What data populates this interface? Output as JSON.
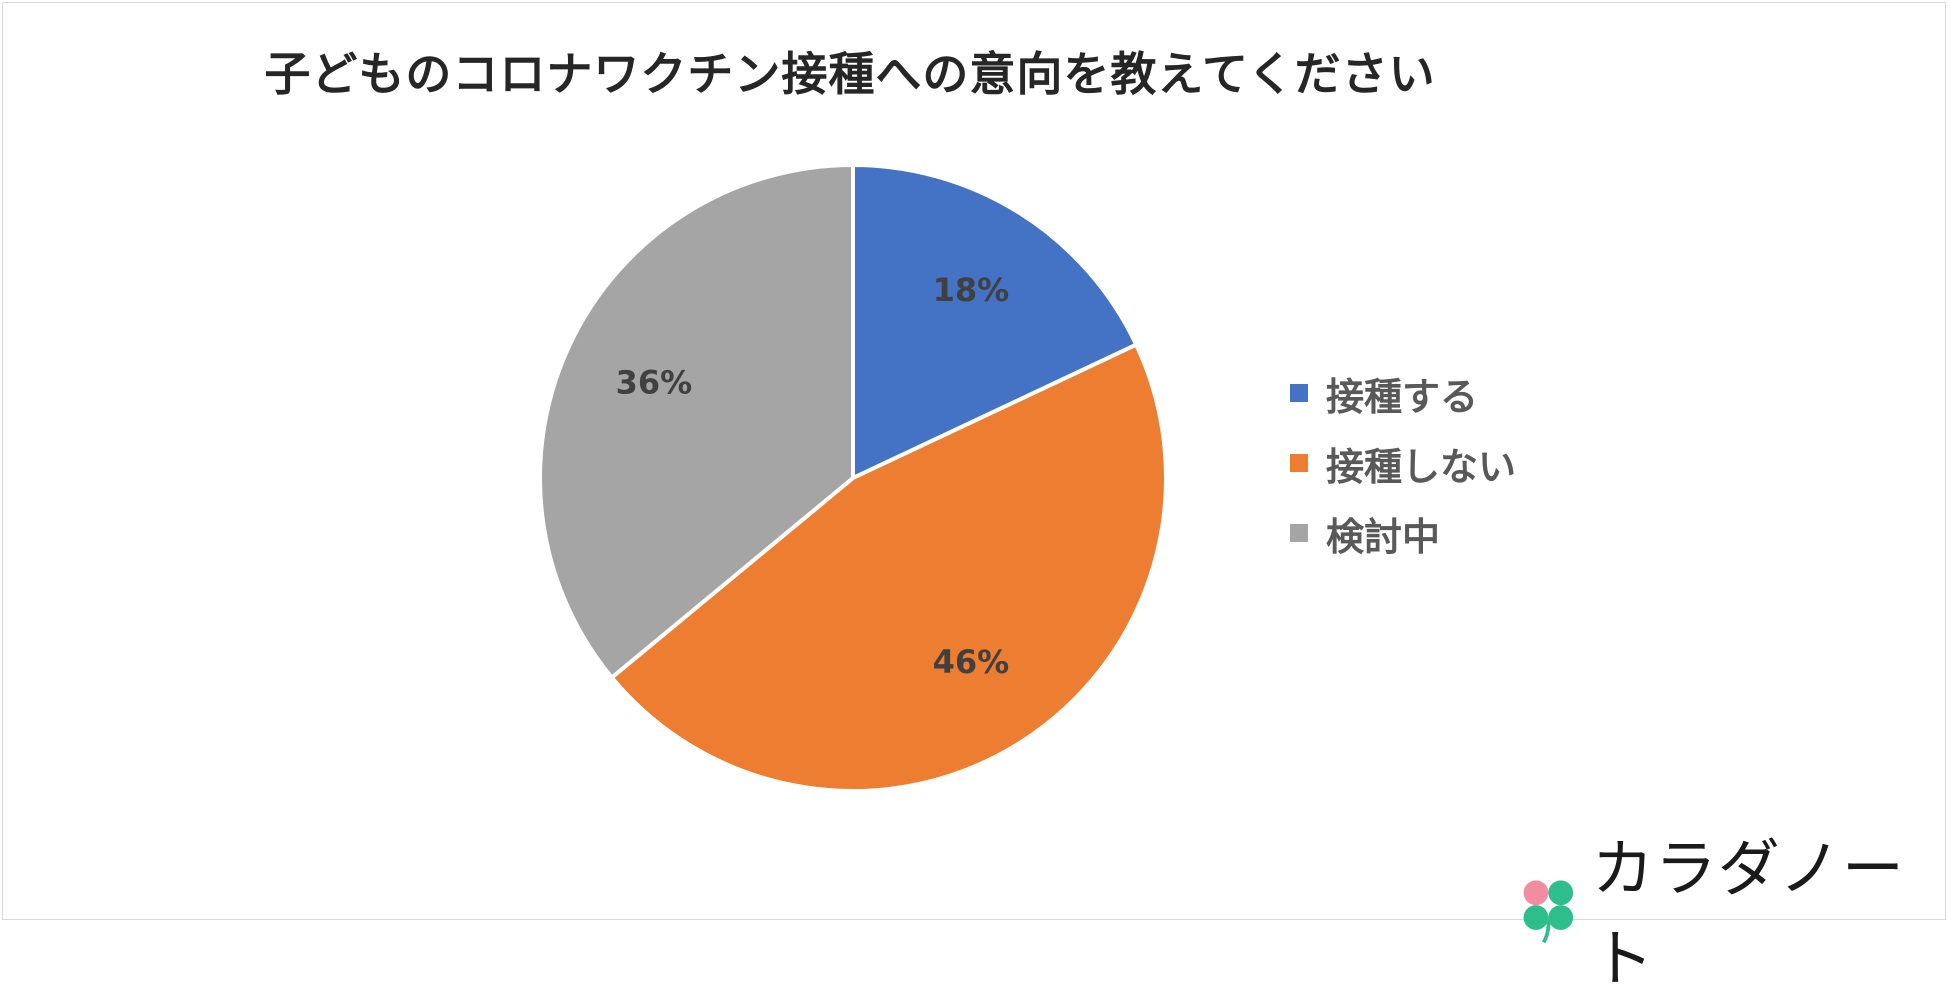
{
  "chart_data": {
    "type": "pie",
    "title": "子どものコロナワクチン接種への意向を教えてください",
    "categories": [
      "接種する",
      "接種しない",
      "検討中"
    ],
    "values": [
      18,
      46,
      36
    ],
    "labels": [
      "18%",
      "46%",
      "36%"
    ],
    "colors": [
      "#4472C4",
      "#ED7D31",
      "#A5A5A5"
    ],
    "legend_position": "right",
    "start_angle_deg": 0,
    "direction": "clockwise"
  },
  "logo": {
    "text": "カラダノート",
    "icon": "clover-icon"
  }
}
